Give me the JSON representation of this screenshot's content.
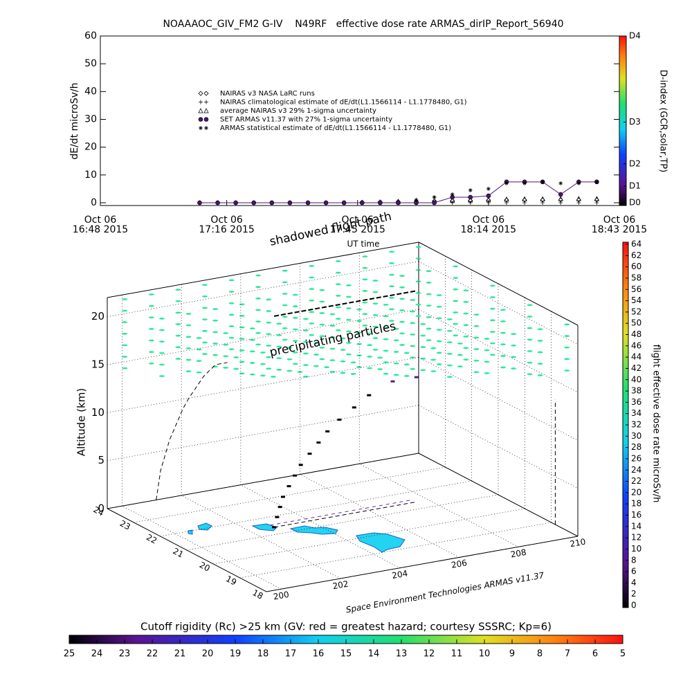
{
  "chart_data": [
    {
      "type": "line",
      "title": "NOAAAOC_GIV_FM2 G-IV    N49RF   effective dose rate ARMAS_dirIP_Report_56940",
      "ylabel": "dE/dt microSv/h",
      "xlabel": "UT time",
      "xlim": [
        "2015-10-06T16:48",
        "2015-10-06T18:43"
      ],
      "xticks": [
        {
          "value": "2015-10-06T16:48",
          "label": [
            "Oct 06",
            "16:48 2015"
          ]
        },
        {
          "value": "2015-10-06T17:16",
          "label": [
            "Oct 06",
            "17:16 2015"
          ]
        },
        {
          "value": "2015-10-06T17:45",
          "label": [
            "Oct 06",
            "17:45 2015"
          ]
        },
        {
          "value": "2015-10-06T18:14",
          "label": [
            "Oct 06",
            "18:14 2015"
          ]
        },
        {
          "value": "2015-10-06T18:43",
          "label": [
            "Oct 06",
            "18:43 2015"
          ]
        }
      ],
      "ylim": [
        -1,
        60
      ],
      "yticks": [
        0,
        10,
        20,
        30,
        40,
        50,
        60
      ],
      "x": [
        "2015-10-06T17:10",
        "2015-10-06T17:14",
        "2015-10-06T17:18",
        "2015-10-06T17:22",
        "2015-10-06T17:26",
        "2015-10-06T17:30",
        "2015-10-06T17:34",
        "2015-10-06T17:38",
        "2015-10-06T17:42",
        "2015-10-06T17:46",
        "2015-10-06T17:50",
        "2015-10-06T17:54",
        "2015-10-06T17:58",
        "2015-10-06T18:02",
        "2015-10-06T18:06",
        "2015-10-06T18:10",
        "2015-10-06T18:14",
        "2015-10-06T18:18",
        "2015-10-06T18:22",
        "2015-10-06T18:26",
        "2015-10-06T18:30",
        "2015-10-06T18:34",
        "2015-10-06T18:38"
      ],
      "series": [
        {
          "name": "NAIRAS v3 NASA LaRC runs",
          "marker": "diamond",
          "color": "#000000",
          "values": [
            0,
            0,
            0,
            0,
            0,
            0,
            0,
            0,
            0,
            0.2,
            0.3,
            0.4,
            0.5,
            0.6,
            0.7,
            0.8,
            0.9,
            1,
            1,
            1,
            1,
            1,
            1
          ]
        },
        {
          "name": "NAIRAS climatological estimate of dE/dt(L1.1566114 - L1.1778480, G1)",
          "marker": "plus",
          "color": "#000000",
          "values": [
            0,
            0,
            0,
            0,
            0,
            0,
            0,
            0,
            0,
            0,
            0,
            0,
            0,
            0,
            0,
            0,
            0,
            0,
            0,
            0,
            0,
            0,
            0
          ]
        },
        {
          "name": "average NAIRAS v3 29% 1-sigma uncertainty",
          "marker": "triangle",
          "color": "#000000",
          "values": [
            null,
            null,
            null,
            null,
            null,
            null,
            null,
            null,
            null,
            null,
            null,
            0.5,
            0.7,
            0.8,
            1,
            1.1,
            1.2,
            1.3,
            1.4,
            1.4,
            1.5,
            1.5,
            1.5
          ]
        },
        {
          "name": "SET ARMAS v11.37 with 27% 1-sigma uncertainty",
          "marker": "circle",
          "color": "#4a1470",
          "values": [
            0,
            0,
            0,
            0,
            0,
            0,
            0,
            0,
            0,
            0,
            0,
            0,
            0,
            0,
            2,
            2,
            2.5,
            7.5,
            7.5,
            7.5,
            3,
            7.5,
            7.5
          ]
        },
        {
          "name": "ARMAS statistical estimate of dE/dt(L1.1566114 - L1.1778480, G1)",
          "marker": "asterisk",
          "color": "#000000",
          "values": [
            null,
            null,
            null,
            null,
            null,
            null,
            null,
            null,
            null,
            null,
            null,
            null,
            1,
            2,
            3,
            4.5,
            5,
            7,
            7,
            7.5,
            7,
            7,
            7.5
          ]
        }
      ]
    },
    {
      "type": "colorbar",
      "label": "D-index (GCR,solar,TP)",
      "ylim": [
        -1,
        60
      ],
      "yticks": [
        {
          "value": 0,
          "label": "D0"
        },
        {
          "value": 6,
          "label": "D1"
        },
        {
          "value": 14,
          "label": "D2"
        },
        {
          "value": 29,
          "label": "D3"
        },
        {
          "value": 60,
          "label": "D4"
        }
      ]
    },
    {
      "type": "scatter3d",
      "zlabel": "Altitude (km)",
      "annotations": [
        "shadowed flight path",
        "precipitating particles",
        "Space Environment Technologies ARMAS v11.37"
      ],
      "xlim": [
        199.5,
        210
      ],
      "xticks": [
        200,
        202,
        204,
        206,
        208,
        210
      ],
      "ylim": [
        18,
        24
      ],
      "yticks": [
        18,
        19,
        20,
        21,
        22,
        23,
        24
      ],
      "zlim": [
        0,
        22
      ],
      "zticks": [
        0,
        5,
        10,
        15,
        20
      ],
      "series": [
        {
          "name": "flight path",
          "color": "#000000",
          "x": [
            202.8,
            202.9,
            203.0,
            203.1,
            203.3,
            203.5,
            203.7,
            204.0,
            204.3,
            204.6,
            205.0,
            205.5,
            206.0,
            206.8,
            207.6
          ],
          "y": [
            21.4,
            21.4,
            21.4,
            21.4,
            21.4,
            21.4,
            21.4,
            21.4,
            21.4,
            21.4,
            21.4,
            21.4,
            21.4,
            21.4,
            21.4
          ],
          "z": [
            0,
            1,
            2,
            3,
            4,
            5,
            6,
            7,
            8,
            9,
            10,
            11,
            12,
            13,
            13
          ]
        }
      ]
    },
    {
      "type": "colorbar",
      "label": "flight effective dose rate microSv/h",
      "ylim": [
        0,
        64
      ],
      "yticks": [
        0,
        2,
        4,
        6,
        8,
        10,
        12,
        14,
        16,
        18,
        20,
        22,
        24,
        26,
        28,
        30,
        32,
        34,
        36,
        38,
        40,
        42,
        44,
        46,
        48,
        50,
        52,
        54,
        56,
        58,
        60,
        62,
        64
      ]
    },
    {
      "type": "colorbar",
      "label": "Cutoff rigidity (Rc) >25 km (GV: red = greatest hazard; courtesy SSSRC; Kp=6)",
      "xlim": [
        25,
        5
      ],
      "xticks": [
        25,
        24,
        23,
        22,
        21,
        20,
        19,
        18,
        17,
        16,
        15,
        14,
        13,
        12,
        11,
        10,
        9,
        8,
        7,
        6,
        5
      ]
    }
  ]
}
